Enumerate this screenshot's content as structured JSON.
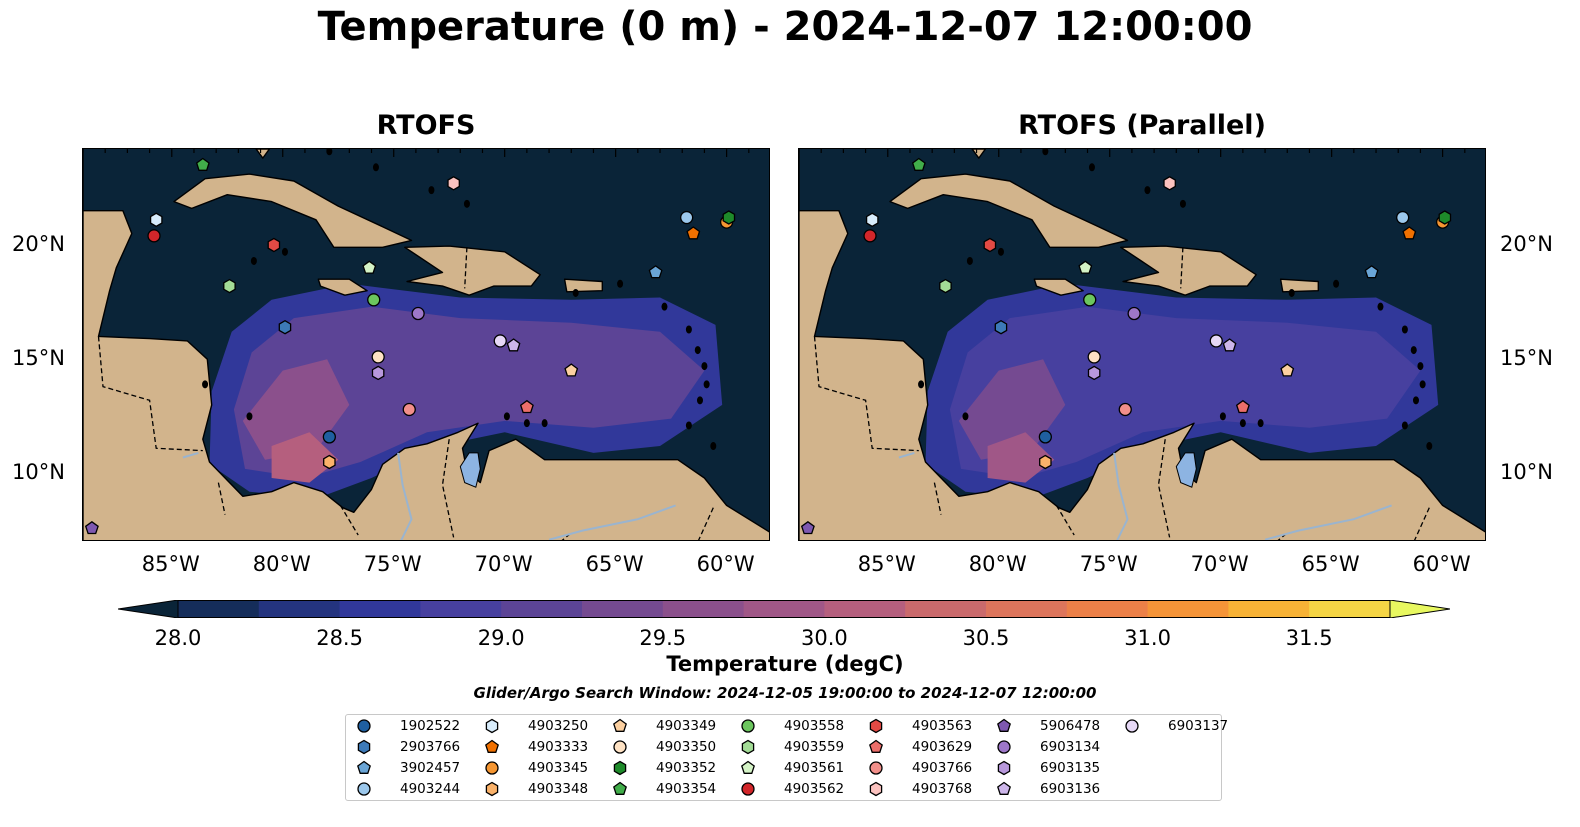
{
  "title": "Temperature (0 m) - 2024-12-07 12:00:00",
  "panels": [
    {
      "title": "RTOFS",
      "id": "rtofs"
    },
    {
      "title": "RTOFS (Parallel)",
      "id": "rtofs-parallel"
    }
  ],
  "axes": {
    "lon_labels": [
      "85°W",
      "80°W",
      "75°W",
      "70°W",
      "65°W",
      "60°W"
    ],
    "lon_values": [
      -85,
      -80,
      -75,
      -70,
      -65,
      -60
    ],
    "lat_labels": [
      "20°N",
      "15°N",
      "10°N"
    ],
    "lat_values": [
      20,
      15,
      10
    ],
    "lon_range": [
      -89,
      -58
    ],
    "lat_range": [
      7,
      24.2
    ]
  },
  "colorbar": {
    "label": "Temperature (degC)",
    "ticks": [
      "28.0",
      "28.5",
      "29.0",
      "29.5",
      "30.0",
      "30.5",
      "31.0",
      "31.5"
    ],
    "range": [
      28.0,
      31.5
    ],
    "step": 0.25,
    "extend": "both",
    "colors": [
      "#0a2438",
      "#152d5a",
      "#24347f",
      "#31389a",
      "#47409f",
      "#5c4496",
      "#754a91",
      "#8b508c",
      "#a05787",
      "#b55f7e",
      "#ca6a6c",
      "#dd755c",
      "#ec8048",
      "#f59438",
      "#f7b236",
      "#f5d545",
      "#e8f860"
    ]
  },
  "search_window": "Glider/Argo Search Window: 2024-12-05 19:00:00 to 2024-12-07 12:00:00",
  "legend": [
    {
      "id": "1902522",
      "marker": "circle",
      "color": "#1f5fa0"
    },
    {
      "id": "2903766",
      "marker": "hexagon",
      "color": "#3d7ab8"
    },
    {
      "id": "3902457",
      "marker": "pentagon",
      "color": "#6aa5d6"
    },
    {
      "id": "4903244",
      "marker": "circle",
      "color": "#9cc8ec"
    },
    {
      "id": "4903250",
      "marker": "hexagon",
      "color": "#d8ecfb"
    },
    {
      "id": "4903333",
      "marker": "pentagon",
      "color": "#f07000"
    },
    {
      "id": "4903345",
      "marker": "circle",
      "color": "#f59632"
    },
    {
      "id": "4903348",
      "marker": "hexagon",
      "color": "#fab26a"
    },
    {
      "id": "4903349",
      "marker": "pentagon",
      "color": "#fcd0a0"
    },
    {
      "id": "4903350",
      "marker": "circle",
      "color": "#fee2c4"
    },
    {
      "id": "4903352",
      "marker": "hexagon",
      "color": "#1e8a2a"
    },
    {
      "id": "4903354",
      "marker": "pentagon",
      "color": "#41ad4a"
    },
    {
      "id": "4903558",
      "marker": "circle",
      "color": "#6cc65e"
    },
    {
      "id": "4903559",
      "marker": "hexagon",
      "color": "#a3dc96"
    },
    {
      "id": "4903561",
      "marker": "pentagon",
      "color": "#d4f3c6"
    },
    {
      "id": "4903562",
      "marker": "circle",
      "color": "#d2262a"
    },
    {
      "id": "4903563",
      "marker": "hexagon",
      "color": "#e34a44"
    },
    {
      "id": "4903629",
      "marker": "pentagon",
      "color": "#ec6e6a"
    },
    {
      "id": "4903766",
      "marker": "circle",
      "color": "#f28f8a"
    },
    {
      "id": "4903768",
      "marker": "hexagon",
      "color": "#fbc2bf"
    },
    {
      "id": "5906478",
      "marker": "pentagon",
      "color": "#7e58b0"
    },
    {
      "id": "6903134",
      "marker": "circle",
      "color": "#9d77c8"
    },
    {
      "id": "6903135",
      "marker": "hexagon",
      "color": "#b898dc"
    },
    {
      "id": "6903136",
      "marker": "pentagon",
      "color": "#cdb6ea"
    },
    {
      "id": "6903137",
      "marker": "circle",
      "color": "#e6d8f6"
    }
  ],
  "platform_positions": [
    {
      "id": "1902522",
      "lon": -77.9,
      "lat": 11.6
    },
    {
      "id": "2903766",
      "lon": -79.9,
      "lat": 16.4
    },
    {
      "id": "3902457",
      "lon": -63.2,
      "lat": 18.8
    },
    {
      "id": "4903244",
      "lon": -61.8,
      "lat": 21.2
    },
    {
      "id": "4903250",
      "lon": -85.7,
      "lat": 21.1
    },
    {
      "id": "4903333",
      "lon": -61.5,
      "lat": 20.5
    },
    {
      "id": "4903345",
      "lon": -60.0,
      "lat": 21.0
    },
    {
      "id": "4903348",
      "lon": -77.9,
      "lat": 10.5
    },
    {
      "id": "4903349",
      "lon": -67.0,
      "lat": 14.5
    },
    {
      "id": "4903350",
      "lon": -75.7,
      "lat": 15.1
    },
    {
      "id": "4903352",
      "lon": -59.9,
      "lat": 21.2
    },
    {
      "id": "4903354",
      "lon": -83.6,
      "lat": 23.5
    },
    {
      "id": "4903558",
      "lon": -75.9,
      "lat": 17.6
    },
    {
      "id": "4903559",
      "lon": -82.4,
      "lat": 18.2
    },
    {
      "id": "4903561",
      "lon": -76.1,
      "lat": 19.0
    },
    {
      "id": "4903562",
      "lon": -85.8,
      "lat": 20.4
    },
    {
      "id": "4903563",
      "lon": -80.4,
      "lat": 20.0
    },
    {
      "id": "4903629",
      "lon": -69.0,
      "lat": 12.9
    },
    {
      "id": "4903766",
      "lon": -74.3,
      "lat": 12.8
    },
    {
      "id": "4903768",
      "lon": -72.3,
      "lat": 22.7
    },
    {
      "id": "5906478",
      "lon": -88.6,
      "lat": 7.6
    },
    {
      "id": "6903134",
      "lon": -73.9,
      "lat": 17.0
    },
    {
      "id": "6903135",
      "lon": -75.7,
      "lat": 14.4
    },
    {
      "id": "6903136",
      "lon": -69.6,
      "lat": 15.6
    },
    {
      "id": "6903137",
      "lon": -70.2,
      "lat": 15.8
    }
  ],
  "map_colors": {
    "ocean_deep": "#0a2438",
    "land": "#d2b48c",
    "lake": "#8db4e2",
    "river": "#9ab4cf"
  }
}
